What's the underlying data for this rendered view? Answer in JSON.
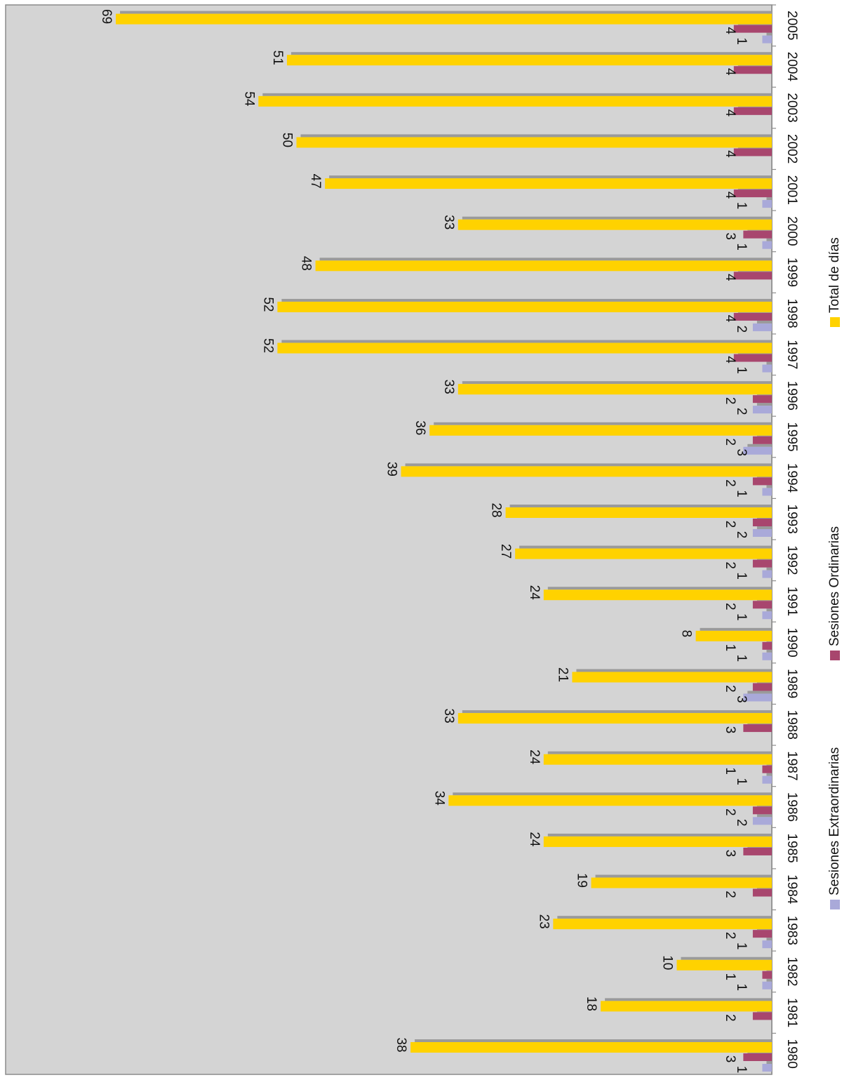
{
  "chart_data": {
    "type": "bar",
    "orientation": "rotated-90-clockwise",
    "categories": [
      "1980",
      "1981",
      "1982",
      "1983",
      "1984",
      "1985",
      "1986",
      "1987",
      "1988",
      "1989",
      "1990",
      "1991",
      "1992",
      "1993",
      "1994",
      "1995",
      "1996",
      "1997",
      "1998",
      "1999",
      "2000",
      "2001",
      "2002",
      "2003",
      "2004",
      "2005"
    ],
    "series": [
      {
        "name": "Sesiones Extraordinarias",
        "color": "#a9a9d9",
        "values": [
          1,
          null,
          1,
          1,
          null,
          null,
          2,
          1,
          null,
          3,
          1,
          1,
          1,
          2,
          1,
          3,
          2,
          1,
          2,
          null,
          1,
          1,
          null,
          null,
          null,
          1
        ]
      },
      {
        "name": "Sesiones Ordinarias",
        "color": "#a8466e",
        "values": [
          3,
          2,
          1,
          2,
          2,
          3,
          2,
          1,
          3,
          2,
          1,
          2,
          2,
          2,
          2,
          2,
          2,
          4,
          4,
          4,
          3,
          4,
          4,
          4,
          4,
          4
        ]
      },
      {
        "name": "Total de días",
        "color": "#ffd200",
        "values": [
          38,
          18,
          10,
          23,
          19,
          24,
          34,
          24,
          33,
          21,
          8,
          24,
          27,
          28,
          39,
          36,
          33,
          52,
          52,
          48,
          33,
          47,
          50,
          54,
          51,
          69
        ]
      }
    ],
    "ylim": [
      0,
      70
    ],
    "grid": false,
    "legend": "bottom",
    "plot_background": "#d4d4d4"
  }
}
